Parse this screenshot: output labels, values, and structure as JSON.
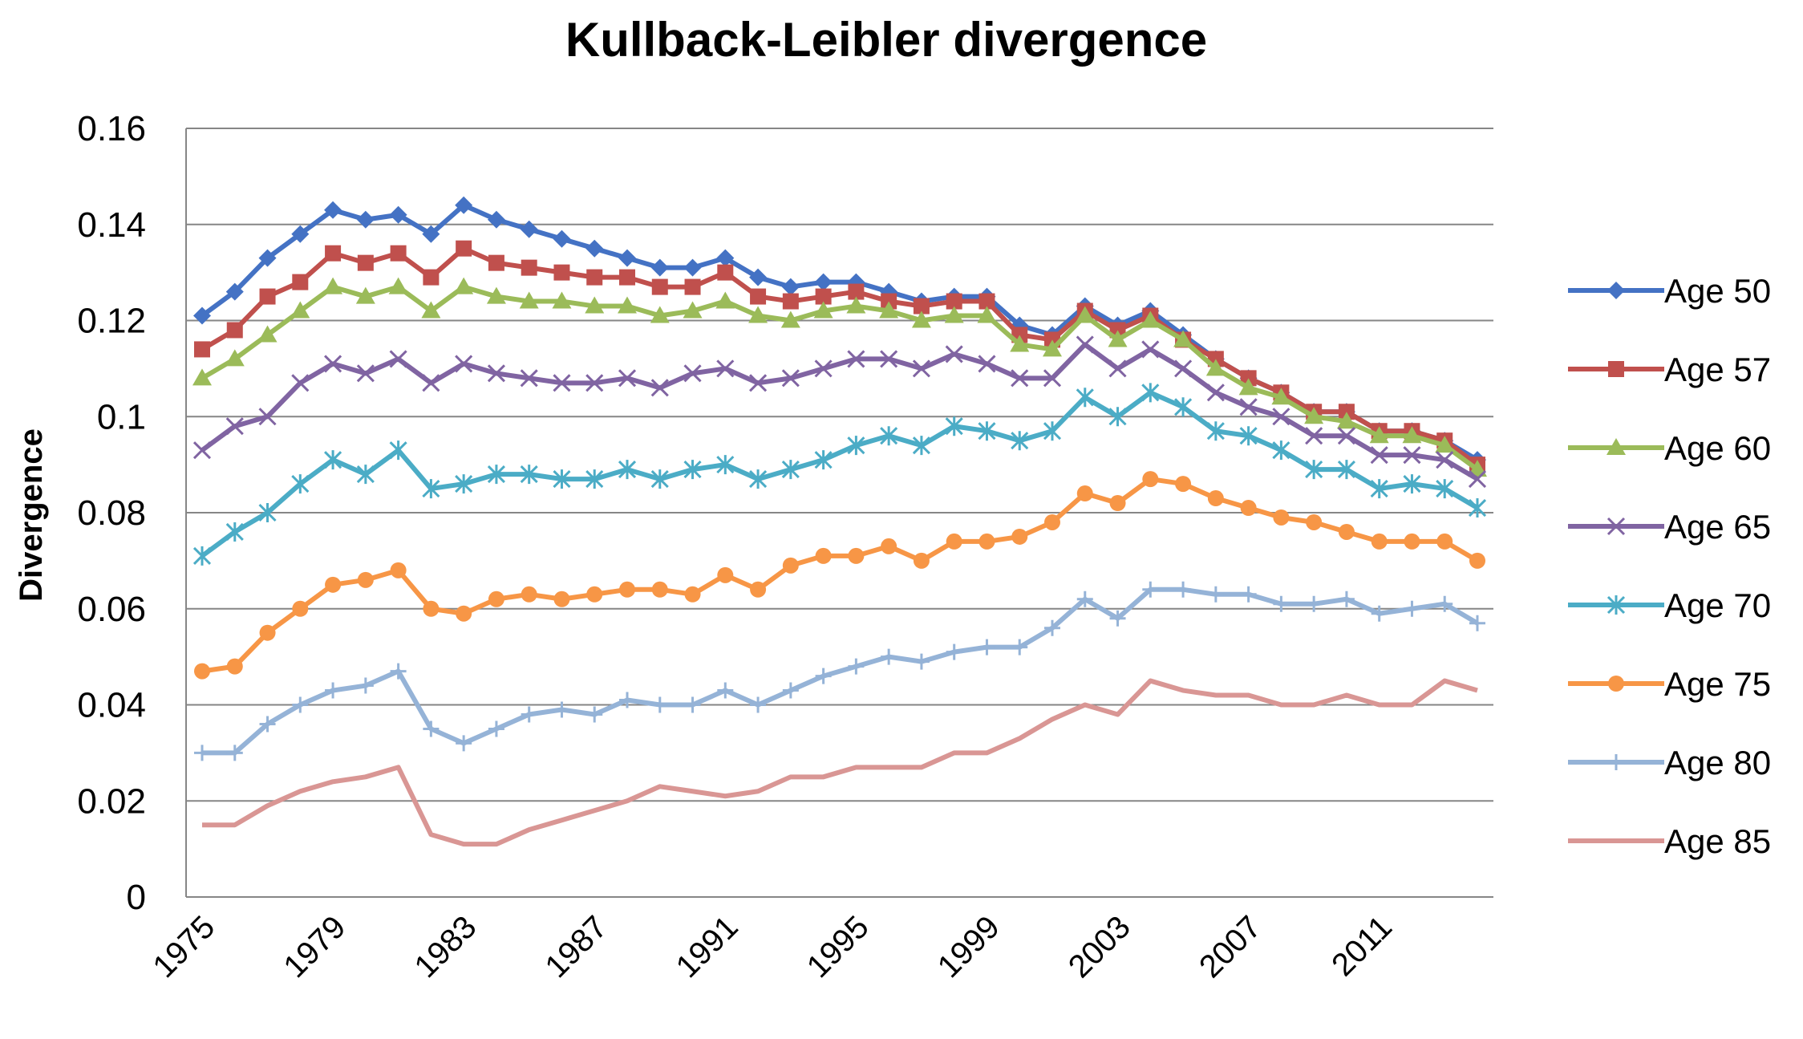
{
  "chart_data": {
    "type": "line",
    "title": "Kullback-Leibler divergence",
    "xlabel": "",
    "ylabel": "Divergence",
    "x": [
      1975,
      1976,
      1977,
      1978,
      1979,
      1980,
      1981,
      1982,
      1983,
      1984,
      1985,
      1986,
      1987,
      1988,
      1989,
      1990,
      1991,
      1992,
      1993,
      1994,
      1995,
      1996,
      1997,
      1998,
      1999,
      2000,
      2001,
      2002,
      2003,
      2004,
      2005,
      2006,
      2007,
      2008,
      2009,
      2010,
      2011,
      2012,
      2013,
      2014
    ],
    "xticks": [
      "1975",
      "1979",
      "1983",
      "1987",
      "1991",
      "1995",
      "1999",
      "2003",
      "2007",
      "2011"
    ],
    "ylim": [
      0,
      0.16
    ],
    "yticks": [
      "0",
      "0.02",
      "0.04",
      "0.06",
      "0.08",
      "0.1",
      "0.12",
      "0.14",
      "0.16"
    ],
    "grid": true,
    "legend_position": "right",
    "series": [
      {
        "name": "Age 50",
        "color": "#4472C4",
        "marker": "diamond",
        "values": [
          0.121,
          0.126,
          0.133,
          0.138,
          0.143,
          0.141,
          0.142,
          0.138,
          0.144,
          0.141,
          0.139,
          0.137,
          0.135,
          0.133,
          0.131,
          0.131,
          0.133,
          0.129,
          0.127,
          0.128,
          0.128,
          0.126,
          0.124,
          0.125,
          0.125,
          0.119,
          0.117,
          0.123,
          0.119,
          0.122,
          0.117,
          0.112,
          0.108,
          0.105,
          0.101,
          0.101,
          0.097,
          0.097,
          0.095,
          0.091
        ]
      },
      {
        "name": "Age 57",
        "color": "#C0504D",
        "marker": "square",
        "values": [
          0.114,
          0.118,
          0.125,
          0.128,
          0.134,
          0.132,
          0.134,
          0.129,
          0.135,
          0.132,
          0.131,
          0.13,
          0.129,
          0.129,
          0.127,
          0.127,
          0.13,
          0.125,
          0.124,
          0.125,
          0.126,
          0.124,
          0.123,
          0.124,
          0.124,
          0.117,
          0.116,
          0.122,
          0.118,
          0.121,
          0.116,
          0.112,
          0.108,
          0.105,
          0.101,
          0.101,
          0.097,
          0.097,
          0.095,
          0.09
        ]
      },
      {
        "name": "Age 60",
        "color": "#9BBB59",
        "marker": "triangle",
        "values": [
          0.108,
          0.112,
          0.117,
          0.122,
          0.127,
          0.125,
          0.127,
          0.122,
          0.127,
          0.125,
          0.124,
          0.124,
          0.123,
          0.123,
          0.121,
          0.122,
          0.124,
          0.121,
          0.12,
          0.122,
          0.123,
          0.122,
          0.12,
          0.121,
          0.121,
          0.115,
          0.114,
          0.121,
          0.116,
          0.12,
          0.116,
          0.11,
          0.106,
          0.104,
          0.1,
          0.099,
          0.096,
          0.096,
          0.094,
          0.089
        ]
      },
      {
        "name": "Age 65",
        "color": "#8064A2",
        "marker": "x",
        "values": [
          0.093,
          0.098,
          0.1,
          0.107,
          0.111,
          0.109,
          0.112,
          0.107,
          0.111,
          0.109,
          0.108,
          0.107,
          0.107,
          0.108,
          0.106,
          0.109,
          0.11,
          0.107,
          0.108,
          0.11,
          0.112,
          0.112,
          0.11,
          0.113,
          0.111,
          0.108,
          0.108,
          0.115,
          0.11,
          0.114,
          0.11,
          0.105,
          0.102,
          0.1,
          0.096,
          0.096,
          0.092,
          0.092,
          0.091,
          0.087
        ]
      },
      {
        "name": "Age 70",
        "color": "#4BACC6",
        "marker": "asterisk",
        "values": [
          0.071,
          0.076,
          0.08,
          0.086,
          0.091,
          0.088,
          0.093,
          0.085,
          0.086,
          0.088,
          0.088,
          0.087,
          0.087,
          0.089,
          0.087,
          0.089,
          0.09,
          0.087,
          0.089,
          0.091,
          0.094,
          0.096,
          0.094,
          0.098,
          0.097,
          0.095,
          0.097,
          0.104,
          0.1,
          0.105,
          0.102,
          0.097,
          0.096,
          0.093,
          0.089,
          0.089,
          0.085,
          0.086,
          0.085,
          0.081
        ]
      },
      {
        "name": "Age 75",
        "color": "#F79646",
        "marker": "circle",
        "values": [
          0.047,
          0.048,
          0.055,
          0.06,
          0.065,
          0.066,
          0.068,
          0.06,
          0.059,
          0.062,
          0.063,
          0.062,
          0.063,
          0.064,
          0.064,
          0.063,
          0.067,
          0.064,
          0.069,
          0.071,
          0.071,
          0.073,
          0.07,
          0.074,
          0.074,
          0.075,
          0.078,
          0.084,
          0.082,
          0.087,
          0.086,
          0.083,
          0.081,
          0.079,
          0.078,
          0.076,
          0.074,
          0.074,
          0.074,
          0.07
        ]
      },
      {
        "name": "Age 80",
        "color": "#95B3D7",
        "marker": "plus",
        "values": [
          0.03,
          0.03,
          0.036,
          0.04,
          0.043,
          0.044,
          0.047,
          0.035,
          0.032,
          0.035,
          0.038,
          0.039,
          0.038,
          0.041,
          0.04,
          0.04,
          0.043,
          0.04,
          0.043,
          0.046,
          0.048,
          0.05,
          0.049,
          0.051,
          0.052,
          0.052,
          0.056,
          0.062,
          0.058,
          0.064,
          0.064,
          0.063,
          0.063,
          0.061,
          0.061,
          0.062,
          0.059,
          0.06,
          0.061,
          0.057
        ]
      },
      {
        "name": "Age 85",
        "color": "#D99694",
        "marker": "none",
        "values": [
          0.015,
          0.015,
          0.019,
          0.022,
          0.024,
          0.025,
          0.027,
          0.013,
          0.011,
          0.011,
          0.014,
          0.016,
          0.018,
          0.02,
          0.023,
          0.022,
          0.021,
          0.022,
          0.025,
          0.025,
          0.027,
          0.027,
          0.027,
          0.03,
          0.03,
          0.033,
          0.037,
          0.04,
          0.038,
          0.045,
          0.043,
          0.042,
          0.042,
          0.04,
          0.04,
          0.042,
          0.04,
          0.04,
          0.045,
          0.043
        ]
      }
    ]
  }
}
